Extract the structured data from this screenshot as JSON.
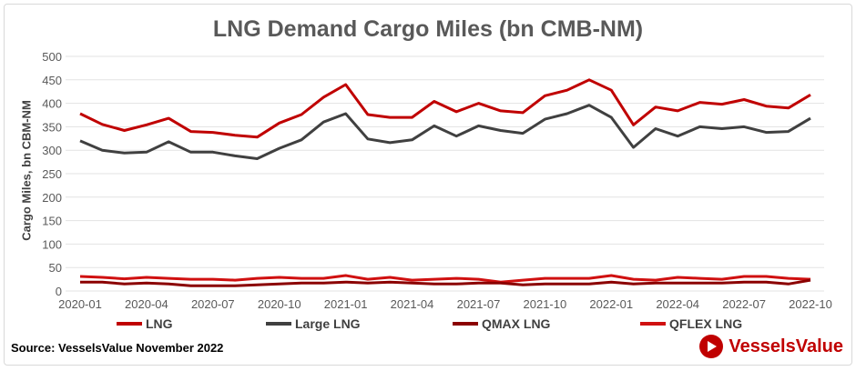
{
  "chart_data": {
    "type": "line",
    "title": "LNG Demand Cargo Miles (bn CMB-NM)",
    "ylabel": "Cargo Miles, bn CBM-NM",
    "xlabel": "",
    "ylim": [
      0,
      500
    ],
    "yticks": [
      0,
      50,
      100,
      150,
      200,
      250,
      300,
      350,
      400,
      450,
      500
    ],
    "grid": true,
    "legend_position": "bottom",
    "x_tick_labels": [
      "2020-01",
      "2020-04",
      "2020-07",
      "2020-10",
      "2021-01",
      "2021-04",
      "2021-07",
      "2021-10",
      "2022-01",
      "2022-04",
      "2022-07",
      "2022-10"
    ],
    "x": [
      "2020-01",
      "2020-02",
      "2020-03",
      "2020-04",
      "2020-05",
      "2020-06",
      "2020-07",
      "2020-08",
      "2020-09",
      "2020-10",
      "2020-11",
      "2020-12",
      "2021-01",
      "2021-02",
      "2021-03",
      "2021-04",
      "2021-05",
      "2021-06",
      "2021-07",
      "2021-08",
      "2021-09",
      "2021-10",
      "2021-11",
      "2021-12",
      "2022-01",
      "2022-02",
      "2022-03",
      "2022-04",
      "2022-05",
      "2022-06",
      "2022-07",
      "2022-08",
      "2022-09",
      "2022-10"
    ],
    "series": [
      {
        "name": "LNG",
        "color": "#c00000",
        "values": [
          378,
          355,
          342,
          354,
          368,
          340,
          338,
          332,
          328,
          358,
          376,
          413,
          440,
          376,
          370,
          370,
          404,
          382,
          400,
          384,
          380,
          416,
          428,
          450,
          428,
          354,
          392,
          384,
          402,
          398,
          408,
          394,
          390,
          418
        ]
      },
      {
        "name": "Large LNG",
        "color": "#404040",
        "values": [
          320,
          300,
          294,
          296,
          318,
          296,
          296,
          288,
          282,
          304,
          322,
          360,
          378,
          324,
          316,
          322,
          352,
          330,
          352,
          342,
          336,
          366,
          378,
          396,
          370,
          306,
          346,
          330,
          350,
          346,
          350,
          338,
          340,
          368
        ]
      },
      {
        "name": "QMAX LNG",
        "color": "#8b0000",
        "values": [
          19,
          19,
          15,
          17,
          15,
          11,
          11,
          11,
          13,
          15,
          17,
          17,
          19,
          17,
          19,
          17,
          15,
          15,
          17,
          17,
          13,
          15,
          15,
          15,
          19,
          15,
          17,
          17,
          17,
          17,
          19,
          19,
          15,
          23
        ]
      },
      {
        "name": "QFLEX LNG",
        "color": "#d01010",
        "values": [
          31,
          29,
          26,
          29,
          27,
          25,
          25,
          23,
          27,
          29,
          27,
          27,
          33,
          25,
          29,
          23,
          25,
          27,
          25,
          19,
          23,
          27,
          27,
          27,
          33,
          25,
          23,
          29,
          27,
          25,
          31,
          31,
          27,
          25
        ]
      }
    ]
  },
  "source": "Source: VesselsValue November 2022",
  "logo_text": "VesselsValue"
}
